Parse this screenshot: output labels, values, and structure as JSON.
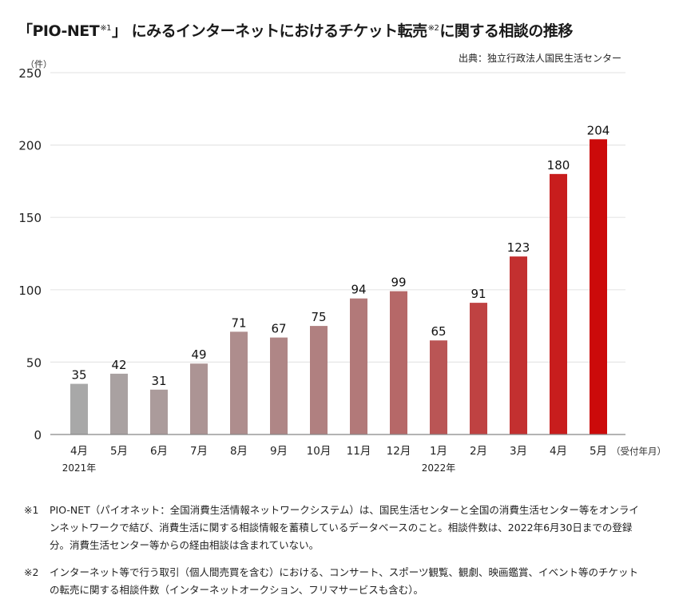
{
  "header": {
    "title_part1": "「PIO-NET",
    "title_sup1": "※1",
    "title_part2": "」 にみるインターネットにおけるチケット転売",
    "title_sup2": "※2",
    "title_part3": "に関する相談の推移",
    "source": "出典：独立行政法人国民生活センター"
  },
  "chart_data": {
    "type": "bar",
    "title": "「PIO-NET※1」にみるインターネットにおけるチケット転売※2に関する相談の推移",
    "ylabel": "（件）",
    "xlabel": "（受付年月）",
    "ylim": [
      0,
      250
    ],
    "yticks": [
      0,
      50,
      100,
      150,
      200,
      250
    ],
    "grid": true,
    "categories": [
      "4月",
      "5月",
      "6月",
      "7月",
      "8月",
      "9月",
      "10月",
      "11月",
      "12月",
      "1月",
      "2月",
      "3月",
      "4月",
      "5月"
    ],
    "year_labels": [
      {
        "index": 0,
        "label": "2021年"
      },
      {
        "index": 9,
        "label": "2022年"
      }
    ],
    "values": [
      35,
      42,
      31,
      49,
      71,
      67,
      75,
      94,
      99,
      65,
      91,
      123,
      180,
      204
    ],
    "color_start": "#a8a8a8",
    "color_end": "#cc0a0a"
  },
  "notes": [
    {
      "mark": "※1",
      "text": "PIO-NET（パイオネット：全国消費生活情報ネットワークシステム）は、国民生活センターと全国の消費生活センター等をオンラインネットワークで結び、消費生活に関する相談情報を蓄積しているデータベースのこと。相談件数は、2022年6月30日までの登録分。消費生活センター等からの経由相談は含まれていない。"
    },
    {
      "mark": "※2",
      "text": "インターネット等で行う取引（個人間売買を含む）における、コンサート、スポーツ観覧、観劇、映画鑑賞、イベント等のチケットの転売に関する相談件数（インターネットオークション、フリマサービスも含む）。"
    }
  ]
}
